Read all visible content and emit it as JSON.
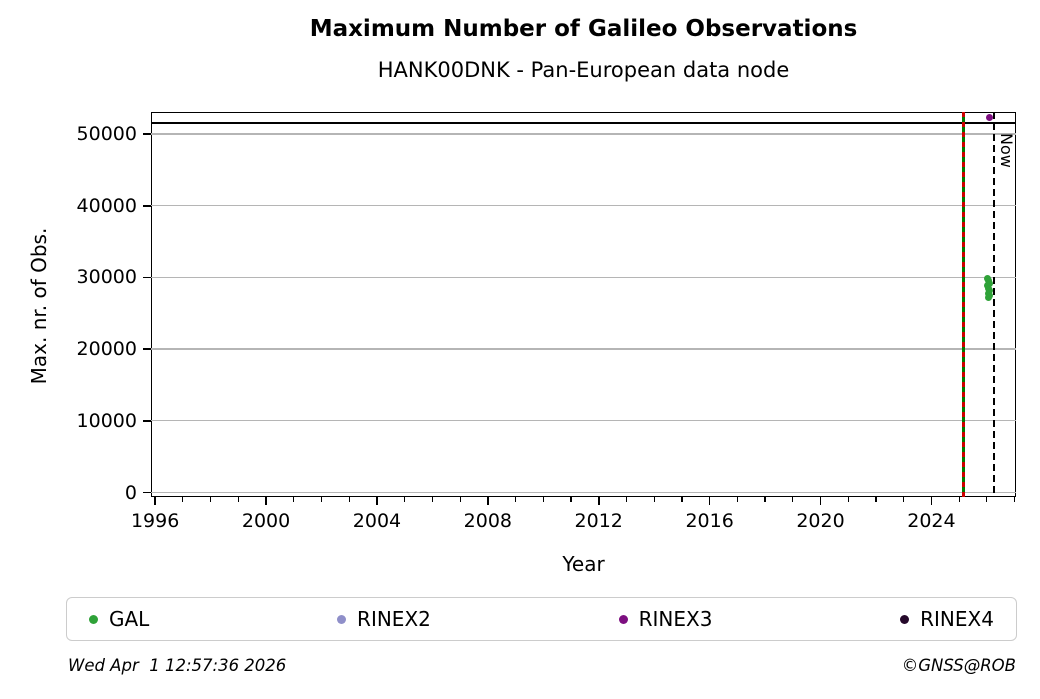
{
  "footer": {
    "generated": "Wed Apr  1 12:57:36 2026",
    "credit": "©GNSS@ROB"
  },
  "chart_data": {
    "type": "scatter",
    "title": "Maximum Number of Galileo Observations",
    "subtitle": "HANK00DNK - Pan-European data node",
    "xlabel": "Year",
    "ylabel": "Max. nr. of Obs.",
    "xlim": [
      1995.85,
      2027.05
    ],
    "ylim": [
      -620,
      53070
    ],
    "xticks_major": [
      1996,
      2000,
      2004,
      2008,
      2012,
      2016,
      2020,
      2024
    ],
    "xticks_minor": [
      1997,
      1998,
      1999,
      2001,
      2002,
      2003,
      2005,
      2006,
      2007,
      2009,
      2010,
      2011,
      2013,
      2014,
      2015,
      2017,
      2018,
      2019,
      2021,
      2022,
      2023,
      2025,
      2026,
      2027
    ],
    "yticks": [
      0,
      10000,
      20000,
      30000,
      40000,
      50000
    ],
    "grid": {
      "horizontal": true,
      "vertical": false,
      "color": "#b5b5b5"
    },
    "hlines": [
      {
        "name": "max-observations-line",
        "y": 51500,
        "color": "#000000"
      }
    ],
    "vlines": [
      {
        "name": "data-start-line",
        "x": 2025.16,
        "style": "red-green-dashed",
        "colors": [
          "#cc0000",
          "#007a00"
        ]
      },
      {
        "name": "now-line",
        "x": 2026.25,
        "style": "dashed",
        "color": "#000000",
        "label": "Now"
      }
    ],
    "legend": {
      "position": "bottom",
      "entries": [
        "GAL",
        "RINEX2",
        "RINEX3",
        "RINEX4"
      ]
    },
    "series": [
      {
        "name": "GAL",
        "color": "#2fa238",
        "points": [
          [
            2026.03,
            29900
          ],
          [
            2026.06,
            29550
          ],
          [
            2026.09,
            29200
          ],
          [
            2026.04,
            28850
          ],
          [
            2026.07,
            28500
          ],
          [
            2026.1,
            28150
          ],
          [
            2026.05,
            27800
          ],
          [
            2026.08,
            27450
          ],
          [
            2026.06,
            27150
          ]
        ]
      },
      {
        "name": "RINEX2",
        "color": "#8f8fc9",
        "points": []
      },
      {
        "name": "RINEX3",
        "color": "#7d0f80",
        "points": [
          [
            2026.09,
            52250
          ]
        ]
      },
      {
        "name": "RINEX4",
        "color": "#25082a",
        "points": []
      }
    ]
  }
}
